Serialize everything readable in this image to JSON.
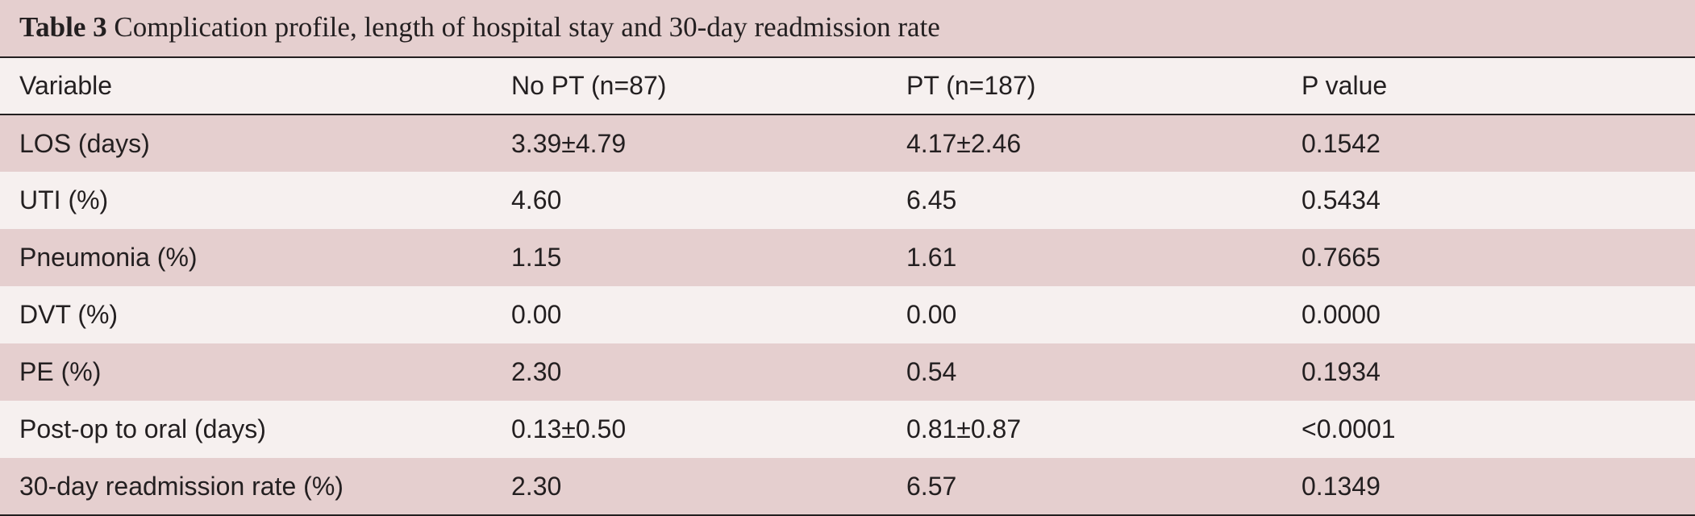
{
  "caption": {
    "label": "Table 3",
    "text": "Complication profile, length of hospital stay and 30-day readmission rate"
  },
  "table": {
    "headers": [
      "Variable",
      "No PT (n=87)",
      "PT (n=187)",
      "P value"
    ],
    "rows": [
      [
        "LOS (days)",
        "3.39±4.79",
        "4.17±2.46",
        "0.1542"
      ],
      [
        "UTI (%)",
        "4.60",
        "6.45",
        "0.5434"
      ],
      [
        "Pneumonia (%)",
        "1.15",
        "1.61",
        "0.7665"
      ],
      [
        "DVT (%)",
        "0.00",
        "0.00",
        "0.0000"
      ],
      [
        "PE (%)",
        "2.30",
        "0.54",
        "0.1934"
      ],
      [
        "Post-op to oral (days)",
        "0.13±0.50",
        "0.81±0.87",
        "<0.0001"
      ],
      [
        "30-day readmission rate (%)",
        "2.30",
        "6.57",
        "0.1349"
      ]
    ]
  },
  "colors": {
    "band_dark": "#e5cfcf",
    "band_light": "#f6f0ef",
    "rule": "#231f20"
  }
}
